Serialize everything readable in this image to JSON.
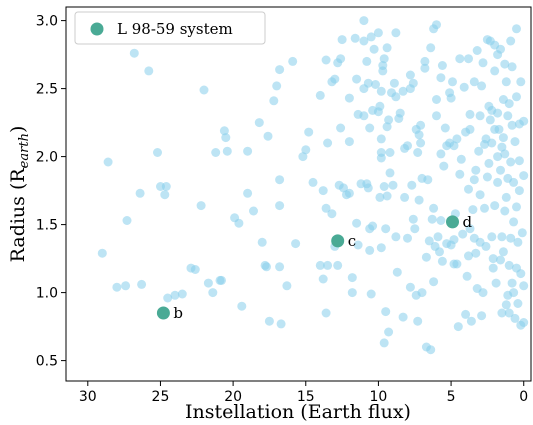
{
  "chart_data": {
    "type": "scatter",
    "xlabel": "Instellation (Earth flux)",
    "ylabel_main": "Radius (R",
    "ylabel_sub": "earth",
    "ylabel_close": ")",
    "xlim": [
      31.5,
      -0.5
    ],
    "ylim": [
      0.35,
      3.1
    ],
    "x_ticks": [
      30,
      25,
      20,
      15,
      10,
      5,
      0
    ],
    "x_tick_labels": [
      "30",
      "25",
      "20",
      "15",
      "10",
      "5",
      "0"
    ],
    "y_ticks": [
      0.5,
      1.0,
      1.5,
      2.0,
      2.5,
      3.0
    ],
    "y_tick_labels": [
      "0.5",
      "1.0",
      "1.5",
      "2.0",
      "2.5",
      "3.0"
    ],
    "legend": {
      "label": "L 98-59 system",
      "position": "top-left"
    },
    "colors": {
      "background_points": "#87ceeb",
      "system_points": "#4aaa95"
    },
    "highlighted": [
      {
        "name": "b",
        "x": 24.8,
        "y": 0.85
      },
      {
        "name": "c",
        "x": 12.8,
        "y": 1.38
      },
      {
        "name": "d",
        "x": 4.9,
        "y": 1.52
      }
    ],
    "background_points": [
      [
        29.0,
        1.29
      ],
      [
        28.6,
        1.96
      ],
      [
        28.0,
        1.04
      ],
      [
        27.4,
        1.05
      ],
      [
        27.3,
        1.53
      ],
      [
        26.8,
        2.76
      ],
      [
        26.4,
        1.73
      ],
      [
        26.3,
        1.06
      ],
      [
        25.8,
        2.63
      ],
      [
        25.2,
        2.03
      ],
      [
        25.0,
        1.78
      ],
      [
        24.6,
        1.78
      ],
      [
        24.7,
        1.72
      ],
      [
        24.5,
        0.96
      ],
      [
        24.0,
        0.98
      ],
      [
        23.5,
        0.99
      ],
      [
        22.9,
        1.18
      ],
      [
        22.6,
        1.17
      ],
      [
        22.2,
        1.64
      ],
      [
        22.0,
        2.49
      ],
      [
        21.7,
        1.07
      ],
      [
        21.4,
        1.0
      ],
      [
        21.2,
        2.03
      ],
      [
        20.9,
        1.09
      ],
      [
        20.8,
        1.09
      ],
      [
        20.6,
        2.19
      ],
      [
        20.5,
        2.14
      ],
      [
        20.4,
        2.04
      ],
      [
        19.9,
        1.55
      ],
      [
        19.6,
        1.51
      ],
      [
        19.4,
        0.9
      ],
      [
        19.0,
        1.73
      ],
      [
        19.0,
        2.04
      ],
      [
        18.6,
        1.6
      ],
      [
        18.2,
        2.25
      ],
      [
        18.0,
        1.37
      ],
      [
        17.8,
        1.2
      ],
      [
        17.7,
        1.19
      ],
      [
        17.6,
        2.15
      ],
      [
        17.5,
        0.79
      ],
      [
        17.2,
        2.41
      ],
      [
        17.0,
        2.52
      ],
      [
        16.8,
        2.64
      ],
      [
        16.8,
        1.64
      ],
      [
        16.8,
        1.83
      ],
      [
        16.8,
        1.19
      ],
      [
        16.7,
        0.77
      ],
      [
        16.3,
        1.05
      ],
      [
        15.9,
        2.7
      ],
      [
        15.7,
        1.36
      ],
      [
        15.2,
        2.0
      ],
      [
        15.0,
        2.05
      ],
      [
        14.8,
        2.18
      ],
      [
        14.5,
        1.81
      ],
      [
        14.0,
        2.45
      ],
      [
        14.0,
        1.2
      ],
      [
        13.8,
        1.1
      ],
      [
        13.8,
        1.75
      ],
      [
        13.6,
        0.85
      ],
      [
        13.6,
        2.71
      ],
      [
        13.6,
        1.62
      ],
      [
        13.5,
        2.1
      ],
      [
        13.5,
        1.2
      ],
      [
        13.2,
        2.55
      ],
      [
        13.2,
        1.58
      ],
      [
        13.0,
        2.57
      ],
      [
        13.0,
        1.34
      ],
      [
        12.8,
        2.69
      ],
      [
        12.8,
        1.2
      ],
      [
        12.7,
        1.79
      ],
      [
        12.6,
        2.21
      ],
      [
        12.6,
        2.72
      ],
      [
        12.5,
        2.86
      ],
      [
        12.4,
        1.77
      ],
      [
        12.2,
        1.72
      ],
      [
        12.0,
        2.43
      ],
      [
        12.0,
        1.73
      ],
      [
        12.0,
        2.11
      ],
      [
        11.8,
        1.0
      ],
      [
        11.8,
        1.11
      ],
      [
        11.6,
        2.87
      ],
      [
        11.5,
        2.57
      ],
      [
        11.5,
        1.51
      ],
      [
        11.4,
        2.31
      ],
      [
        11.4,
        1.35
      ],
      [
        11.2,
        1.8
      ],
      [
        11.0,
        2.5
      ],
      [
        11.0,
        2.3
      ],
      [
        11.0,
        2.85
      ],
      [
        11.0,
        3.0
      ],
      [
        10.8,
        1.8
      ],
      [
        10.8,
        2.7
      ],
      [
        10.7,
        1.77
      ],
      [
        10.7,
        2.54
      ],
      [
        10.6,
        1.31
      ],
      [
        10.6,
        1.47
      ],
      [
        10.6,
        2.21
      ],
      [
        10.5,
        2.88
      ],
      [
        10.5,
        0.99
      ],
      [
        10.4,
        2.34
      ],
      [
        10.4,
        1.49
      ],
      [
        10.3,
        2.79
      ],
      [
        10.2,
        2.53
      ],
      [
        10.0,
        2.33
      ],
      [
        10.0,
        2.91
      ],
      [
        9.9,
        1.7
      ],
      [
        9.9,
        2.37
      ],
      [
        9.8,
        2.48
      ],
      [
        9.8,
        2.13
      ],
      [
        9.8,
        1.99
      ],
      [
        9.8,
        1.33
      ],
      [
        9.8,
        2.03
      ],
      [
        9.7,
        2.63
      ],
      [
        9.7,
        2.67
      ],
      [
        9.6,
        0.63
      ],
      [
        9.6,
        2.72
      ],
      [
        9.6,
        1.78
      ],
      [
        9.5,
        1.47
      ],
      [
        9.5,
        0.86
      ],
      [
        9.4,
        2.22
      ],
      [
        9.4,
        2.8
      ],
      [
        9.4,
        1.71
      ],
      [
        9.3,
        0.71
      ],
      [
        9.3,
        2.27
      ],
      [
        9.2,
        2.03
      ],
      [
        9.2,
        1.88
      ],
      [
        9.1,
        2.47
      ],
      [
        9.0,
        1.79
      ],
      [
        8.9,
        2.54
      ],
      [
        8.8,
        2.91
      ],
      [
        8.8,
        2.44
      ],
      [
        8.8,
        1.41
      ],
      [
        8.7,
        1.15
      ],
      [
        8.6,
        2.28
      ],
      [
        8.5,
        2.32
      ],
      [
        8.3,
        2.48
      ],
      [
        8.3,
        0.82
      ],
      [
        8.2,
        2.06
      ],
      [
        8.2,
        1.7
      ],
      [
        8.0,
        2.08
      ],
      [
        8.0,
        1.4
      ],
      [
        7.8,
        2.6
      ],
      [
        7.8,
        1.04
      ],
      [
        7.8,
        2.5
      ],
      [
        7.7,
        1.79
      ],
      [
        7.6,
        1.54
      ],
      [
        7.6,
        2.54
      ],
      [
        7.5,
        1.47
      ],
      [
        7.4,
        0.98
      ],
      [
        7.4,
        2.2
      ],
      [
        7.3,
        0.79
      ],
      [
        7.3,
        2.03
      ],
      [
        7.2,
        2.16
      ],
      [
        7.2,
        1.68
      ],
      [
        7.1,
        2.23
      ],
      [
        7.1,
        2.1
      ],
      [
        7.0,
        1.84
      ],
      [
        7.0,
        1.0
      ],
      [
        6.8,
        2.7
      ],
      [
        6.8,
        2.65
      ],
      [
        6.7,
        1.26
      ],
      [
        6.7,
        0.6
      ],
      [
        6.6,
        1.83
      ],
      [
        6.5,
        1.38
      ],
      [
        6.4,
        0.58
      ],
      [
        6.4,
        2.8
      ],
      [
        6.3,
        1.54
      ],
      [
        6.2,
        1.62
      ],
      [
        6.2,
        2.94
      ],
      [
        6.2,
        1.08
      ],
      [
        6.1,
        1.34
      ],
      [
        6.0,
        2.3
      ],
      [
        6.0,
        2.97
      ],
      [
        6.0,
        2.42
      ],
      [
        5.9,
        1.41
      ],
      [
        5.8,
        1.3
      ],
      [
        5.7,
        2.58
      ],
      [
        5.7,
        2.02
      ],
      [
        5.7,
        1.53
      ],
      [
        5.6,
        2.67
      ],
      [
        5.6,
        1.23
      ],
      [
        5.5,
        1.93
      ],
      [
        5.4,
        2.21
      ],
      [
        5.3,
        2.08
      ],
      [
        5.3,
        1.36
      ],
      [
        5.1,
        2.47
      ],
      [
        5.1,
        2.1
      ],
      [
        5.0,
        2.43
      ],
      [
        5.0,
        1.35
      ],
      [
        4.9,
        2.55
      ],
      [
        4.8,
        1.21
      ],
      [
        4.8,
        2.08
      ],
      [
        4.8,
        1.39
      ],
      [
        4.7,
        1.58
      ],
      [
        4.6,
        1.21
      ],
      [
        4.6,
        2.13
      ],
      [
        4.5,
        0.75
      ],
      [
        4.4,
        1.87
      ],
      [
        4.4,
        2.72
      ],
      [
        4.3,
        1.98
      ],
      [
        4.2,
        1.43
      ],
      [
        4.1,
        2.51
      ],
      [
        4.0,
        0.84
      ],
      [
        4.0,
        2.18
      ],
      [
        3.9,
        1.12
      ],
      [
        3.8,
        1.27
      ],
      [
        3.8,
        1.76
      ],
      [
        3.8,
        2.72
      ],
      [
        3.7,
        2.2
      ],
      [
        3.7,
        2.31
      ],
      [
        3.7,
        1.47
      ],
      [
        3.6,
        0.79
      ],
      [
        3.5,
        1.61
      ],
      [
        3.4,
        2.55
      ],
      [
        3.4,
        1.4
      ],
      [
        3.4,
        1.83
      ],
      [
        3.3,
        1.29
      ],
      [
        3.3,
        1.9
      ],
      [
        3.2,
        2.78
      ],
      [
        3.2,
        1.03
      ],
      [
        3.1,
        2.04
      ],
      [
        3.0,
        1.72
      ],
      [
        3.0,
        2.3
      ],
      [
        3.0,
        1.37
      ],
      [
        2.9,
        0.83
      ],
      [
        2.9,
        2.52
      ],
      [
        2.8,
        2.69
      ],
      [
        2.8,
        1.0
      ],
      [
        2.7,
        1.62
      ],
      [
        2.7,
        2.09
      ],
      [
        2.6,
        2.13
      ],
      [
        2.6,
        1.34
      ],
      [
        2.5,
        1.85
      ],
      [
        2.5,
        2.86
      ],
      [
        2.4,
        2.37
      ],
      [
        2.4,
        1.95
      ],
      [
        2.3,
        2.27
      ],
      [
        2.3,
        2.85
      ],
      [
        2.2,
        1.41
      ],
      [
        2.2,
        2.1
      ],
      [
        2.2,
        2.34
      ],
      [
        2.1,
        1.25
      ],
      [
        2.1,
        1.18
      ],
      [
        2.0,
        2.2
      ],
      [
        2.0,
        1.64
      ],
      [
        2.0,
        2.63
      ],
      [
        2.0,
        2.82
      ],
      [
        1.9,
        1.07
      ],
      [
        1.8,
        2.75
      ],
      [
        1.8,
        1.81
      ],
      [
        1.8,
        2.32
      ],
      [
        1.8,
        2.0
      ],
      [
        1.7,
        2.2
      ],
      [
        1.6,
        1.24
      ],
      [
        1.6,
        1.9
      ],
      [
        1.6,
        2.79
      ],
      [
        1.5,
        0.85
      ],
      [
        1.5,
        1.41
      ],
      [
        1.5,
        2.07
      ],
      [
        1.4,
        1.3
      ],
      [
        1.4,
        2.42
      ],
      [
        1.4,
        2.14
      ],
      [
        1.3,
        2.02
      ],
      [
        1.3,
        1.6
      ],
      [
        1.3,
        2.68
      ],
      [
        1.2,
        1.7
      ],
      [
        1.2,
        0.91
      ],
      [
        1.2,
        2.55
      ],
      [
        1.1,
        0.98
      ],
      [
        1.1,
        1.84
      ],
      [
        1.1,
        2.3
      ],
      [
        1.0,
        1.2
      ],
      [
        1.0,
        2.39
      ],
      [
        1.0,
        0.85
      ],
      [
        0.9,
        1.4
      ],
      [
        0.9,
        2.85
      ],
      [
        0.9,
        1.96
      ],
      [
        0.8,
        2.23
      ],
      [
        0.8,
        1.07
      ],
      [
        0.8,
        2.66
      ],
      [
        0.7,
        1.52
      ],
      [
        0.7,
        1.81
      ],
      [
        0.7,
        1.0
      ],
      [
        0.6,
        2.11
      ],
      [
        0.6,
        0.81
      ],
      [
        0.5,
        1.18
      ],
      [
        0.5,
        2.44
      ],
      [
        0.5,
        1.63
      ],
      [
        0.5,
        2.94
      ],
      [
        0.4,
        0.92
      ],
      [
        0.4,
        1.37
      ],
      [
        0.3,
        1.97
      ],
      [
        0.3,
        2.24
      ],
      [
        0.3,
        1.75
      ],
      [
        0.2,
        1.14
      ],
      [
        0.2,
        2.55
      ],
      [
        0.2,
        0.76
      ],
      [
        0.1,
        1.44
      ],
      [
        0.0,
        1.05
      ],
      [
        0.0,
        1.86
      ],
      [
        0.0,
        0.78
      ],
      [
        0.0,
        2.26
      ]
    ]
  }
}
